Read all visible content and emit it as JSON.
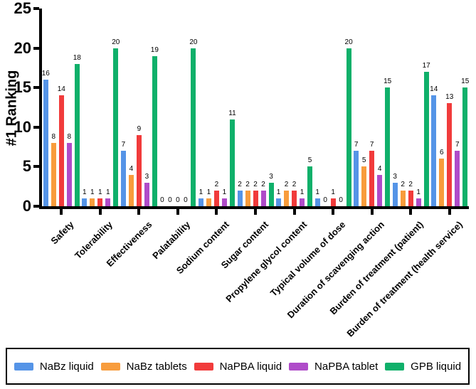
{
  "chart_data": {
    "type": "bar",
    "title": "",
    "xlabel": "",
    "ylabel": "#1 Ranking",
    "ylim": [
      0,
      25
    ],
    "yticks": [
      0,
      5,
      10,
      15,
      20,
      25
    ],
    "grid": false,
    "legend_position": "bottom",
    "value_labels_shown": true,
    "categories": [
      "Safety",
      "Tolerability",
      "Effectiveness",
      "Palatability",
      "Sodium content",
      "Sugar content",
      "Propylene glycol content",
      "Typical volume of dose",
      "Duration of scavenging action",
      "Burden of treatment (patient)",
      "Burden of treatment (health service)"
    ],
    "series": [
      {
        "name": "NaBz liquid",
        "color": "#5594E7",
        "values": [
          16,
          1,
          7,
          0,
          1,
          2,
          1,
          1,
          7,
          3,
          14
        ]
      },
      {
        "name": "NaBz tablets",
        "color": "#F89C3C",
        "values": [
          8,
          1,
          4,
          0,
          1,
          2,
          2,
          0,
          5,
          2,
          6
        ]
      },
      {
        "name": "NaPBA liquid",
        "color": "#F13B3B",
        "values": [
          14,
          1,
          9,
          0,
          2,
          2,
          2,
          1,
          7,
          2,
          13
        ]
      },
      {
        "name": "NaPBA tablet",
        "color": "#AF4BC9",
        "values": [
          8,
          1,
          3,
          0,
          1,
          2,
          1,
          0,
          4,
          1,
          7
        ]
      },
      {
        "name": "GPB liquid",
        "color": "#0FB06A",
        "values": [
          18,
          20,
          19,
          20,
          11,
          3,
          5,
          20,
          15,
          17,
          15
        ]
      }
    ],
    "axis_color": "#000000"
  }
}
